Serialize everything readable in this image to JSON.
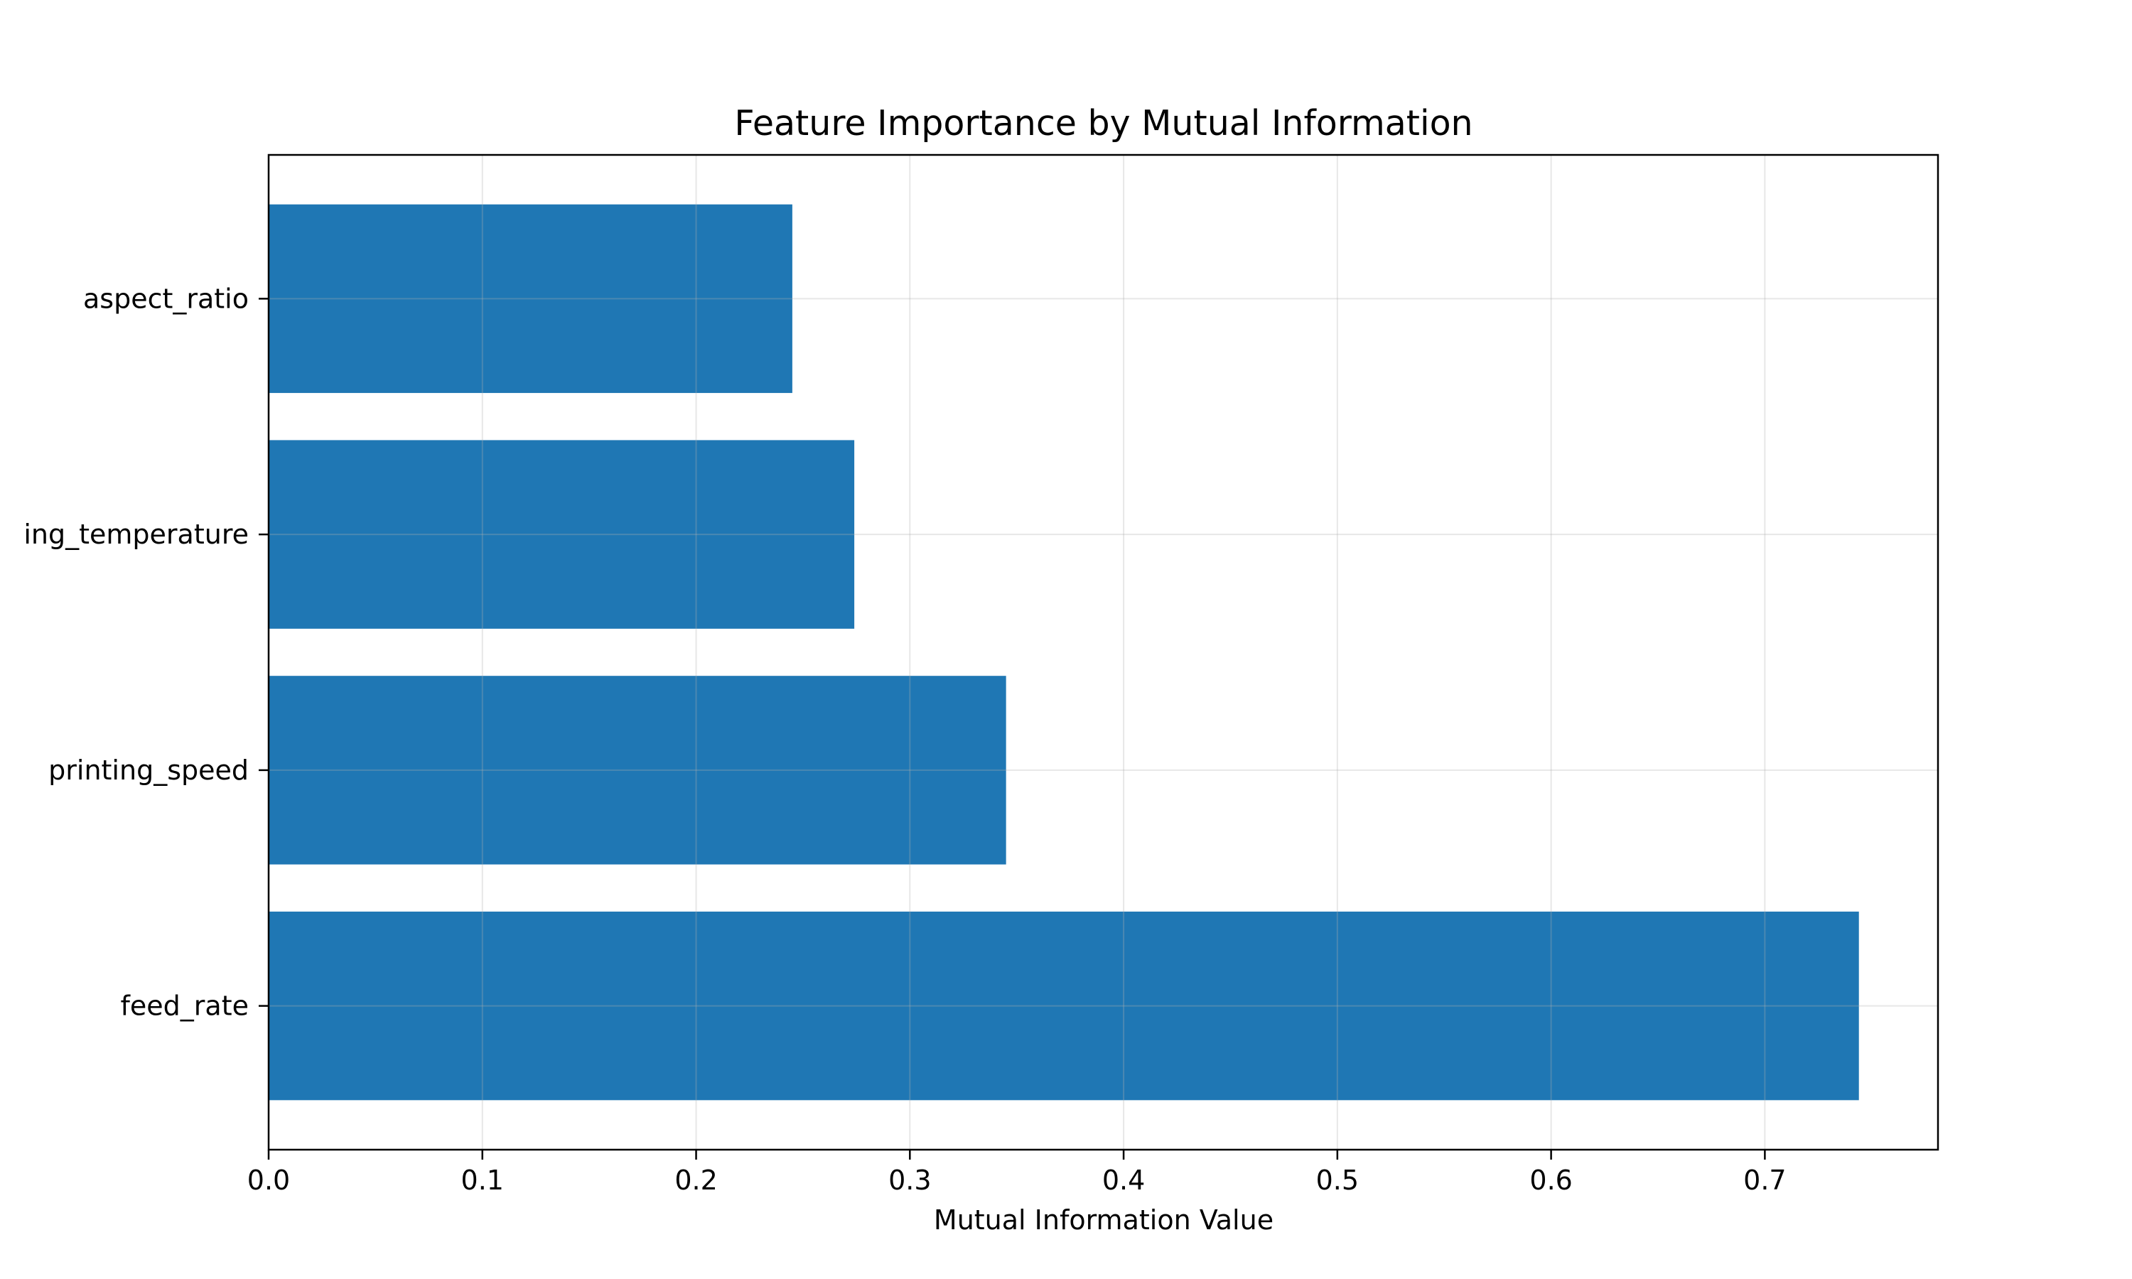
{
  "chart_data": {
    "type": "bar",
    "orientation": "horizontal",
    "title": "Feature Importance by Mutual Information",
    "xlabel": "Mutual Information Value",
    "ylabel": "",
    "categories": [
      "feed_rate",
      "printing_speed",
      "ing_temperature",
      "aspect_ratio"
    ],
    "values": [
      0.744,
      0.345,
      0.274,
      0.245
    ],
    "xlim": [
      0,
      0.781
    ],
    "xticks": [
      0.0,
      0.1,
      0.2,
      0.3,
      0.4,
      0.5,
      0.6,
      0.7
    ],
    "xtick_labels": [
      "0.0",
      "0.1",
      "0.2",
      "0.3",
      "0.4",
      "0.5",
      "0.6",
      "0.7"
    ],
    "bar_color": "#1f77b4",
    "grid": true,
    "legend": false
  }
}
